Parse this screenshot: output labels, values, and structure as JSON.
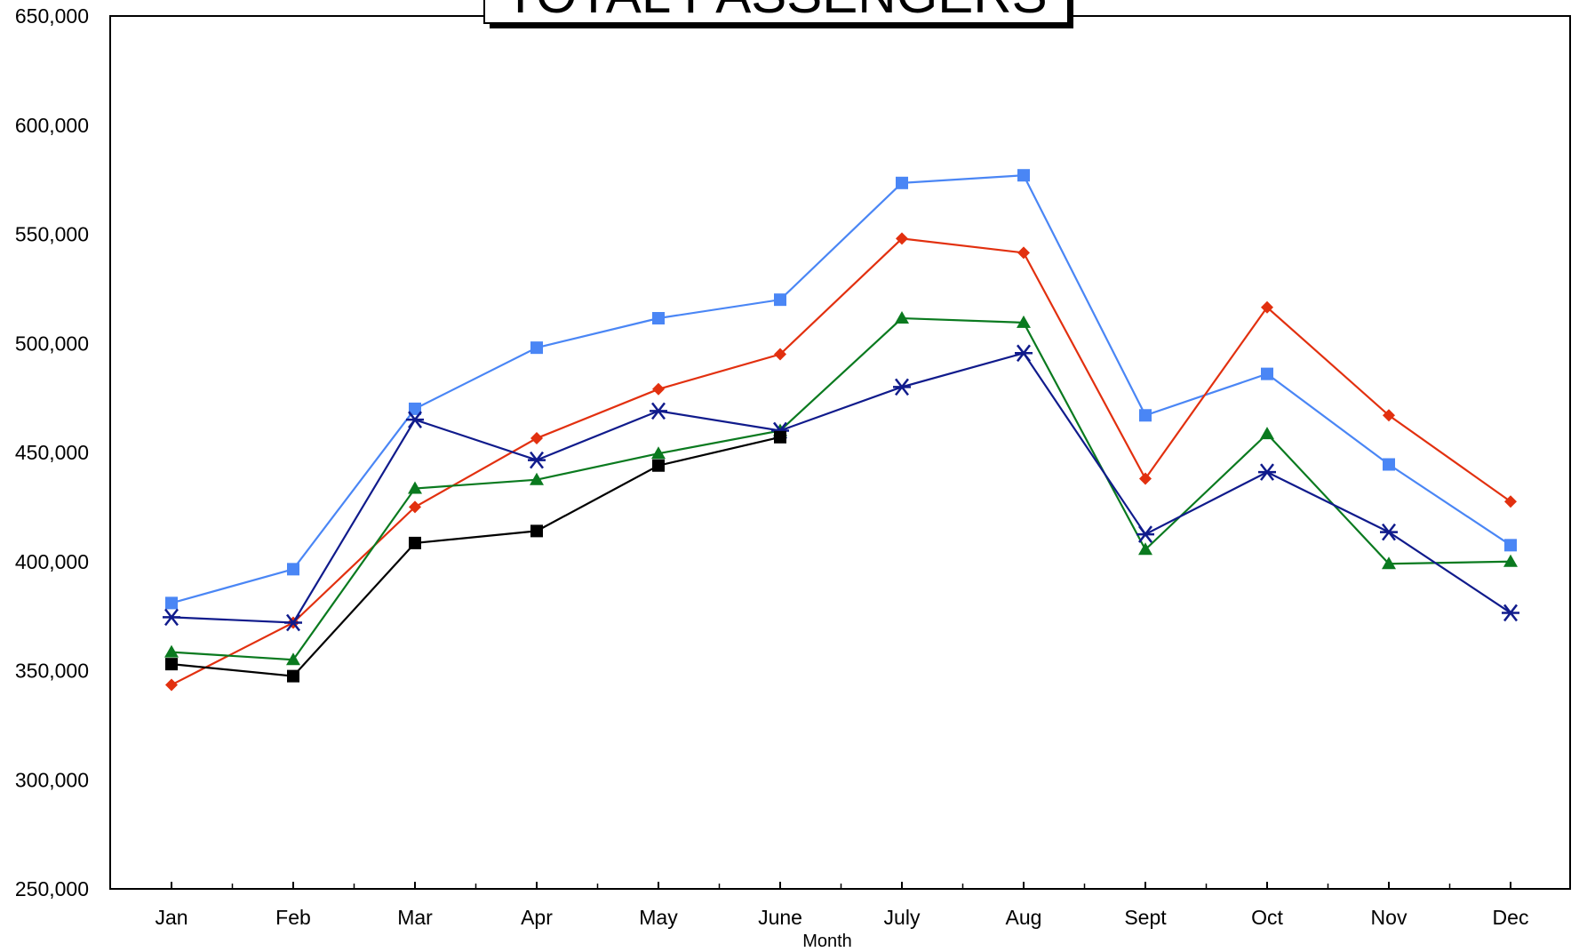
{
  "chart_data": {
    "type": "line",
    "title": "TOTAL PASSENGERS",
    "xlabel": "Month",
    "ylabel": "",
    "categories": [
      "Jan",
      "Feb",
      "Mar",
      "Apr",
      "May",
      "June",
      "July",
      "Aug",
      "Sept",
      "Oct",
      "Nov",
      "Dec"
    ],
    "ylim": [
      250000,
      650000
    ],
    "yticks": [
      250000,
      300000,
      350000,
      400000,
      450000,
      500000,
      550000,
      600000,
      650000
    ],
    "ytick_labels": [
      "250,000",
      "300,000",
      "350,000",
      "400,000",
      "450,000",
      "500,000",
      "550,000",
      "600,000",
      "650,000"
    ],
    "grid": false,
    "legend": "none",
    "series": [
      {
        "color": "#4a86f5",
        "marker": "square",
        "values": [
          381000,
          396500,
          470000,
          498000,
          511500,
          520000,
          573500,
          577000,
          467000,
          486000,
          444500,
          407500
        ]
      },
      {
        "color": "#e2300f",
        "marker": "diamond",
        "values": [
          343500,
          372000,
          425000,
          456500,
          479000,
          495000,
          548000,
          541500,
          438000,
          516500,
          467000,
          427500
        ]
      },
      {
        "color": "#0a7a1f",
        "marker": "triangle",
        "values": [
          358500,
          355000,
          433500,
          437500,
          449500,
          460000,
          511500,
          509500,
          405500,
          458500,
          399000,
          400000
        ]
      },
      {
        "color": "#101b8c",
        "marker": "asterisk",
        "values": [
          374500,
          372000,
          465000,
          446500,
          469000,
          460000,
          480000,
          495500,
          412500,
          441000,
          413500,
          376500
        ]
      },
      {
        "color": "#000000",
        "marker": "square",
        "values": [
          353000,
          347500,
          408500,
          414000,
          444000,
          457000,
          null,
          null,
          null,
          null,
          null,
          null
        ]
      }
    ]
  }
}
